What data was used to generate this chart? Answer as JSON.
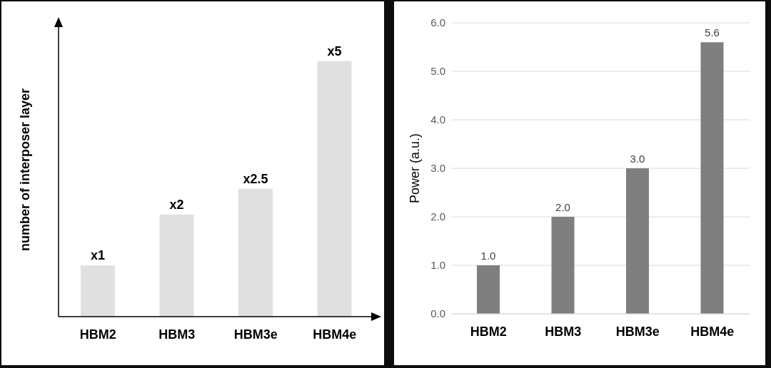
{
  "chart_data": [
    {
      "type": "bar",
      "ylabel": "number of  interposer layer",
      "categories": [
        "HBM2",
        "HBM3",
        "HBM3e",
        "HBM4e"
      ],
      "values": [
        1,
        2,
        2.5,
        5
      ],
      "ylim": [
        0,
        5.75
      ],
      "value_labels": [
        "x1",
        "x2",
        "x2.5",
        "x5"
      ],
      "color": "#e0e0e0",
      "grid": false
    },
    {
      "type": "bar",
      "ylabel": "Power (a.u.)",
      "categories": [
        "HBM2",
        "HBM3",
        "HBM3e",
        "HBM4e"
      ],
      "values": [
        1.0,
        2.0,
        3.0,
        5.6
      ],
      "value_labels": [
        "1.0",
        "2.0",
        "3.0",
        "5.6"
      ],
      "color": "#7f7f7f",
      "ylim": [
        0,
        6
      ],
      "yticks": [
        {
          "value": 0,
          "label": "0.0"
        },
        {
          "value": 1,
          "label": "1.0"
        },
        {
          "value": 2,
          "label": "2.0"
        },
        {
          "value": 3,
          "label": "3.0"
        },
        {
          "value": 4,
          "label": "4.0"
        },
        {
          "value": 5,
          "label": "5.0"
        },
        {
          "value": 6,
          "label": "6.0"
        }
      ],
      "grid": "y"
    }
  ]
}
